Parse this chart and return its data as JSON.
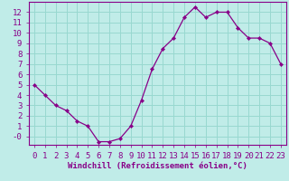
{
  "hours": [
    0,
    1,
    2,
    3,
    4,
    5,
    6,
    7,
    8,
    9,
    10,
    11,
    12,
    13,
    14,
    15,
    16,
    17,
    18,
    19,
    20,
    21,
    22,
    23
  ],
  "temps": [
    5.0,
    4.0,
    3.0,
    2.5,
    1.5,
    1.0,
    -0.5,
    -0.5,
    -0.2,
    1.0,
    3.5,
    6.5,
    8.5,
    9.5,
    11.5,
    12.5,
    11.5,
    12.0,
    12.0,
    10.5,
    9.5,
    9.5,
    9.0,
    7.0
  ],
  "line_color": "#880088",
  "marker_color": "#880088",
  "bg_color": "#c0ece8",
  "grid_color": "#98d8d0",
  "axis_color": "#880088",
  "xlabel": "Windchill (Refroidissement éolien,°C)",
  "xlim_min": -0.5,
  "xlim_max": 23.5,
  "ylim_min": -0.8,
  "ylim_max": 13.0,
  "yticks": [
    0,
    1,
    2,
    3,
    4,
    5,
    6,
    7,
    8,
    9,
    10,
    11,
    12
  ],
  "ytick_labels": [
    "-0",
    "1",
    "2",
    "3",
    "4",
    "5",
    "6",
    "7",
    "8",
    "9",
    "10",
    "11",
    "12"
  ],
  "xticks": [
    0,
    1,
    2,
    3,
    4,
    5,
    6,
    7,
    8,
    9,
    10,
    11,
    12,
    13,
    14,
    15,
    16,
    17,
    18,
    19,
    20,
    21,
    22,
    23
  ],
  "font_size": 6.5,
  "xlabel_font_size": 6.5
}
